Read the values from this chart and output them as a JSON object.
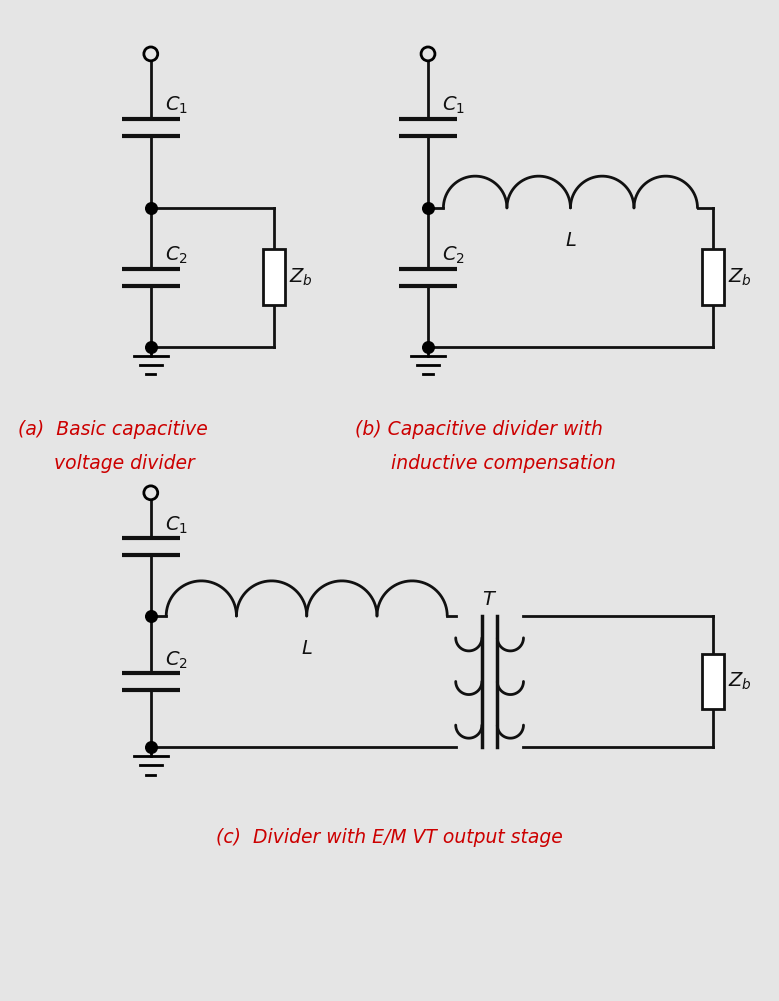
{
  "bg_color": "#e5e5e5",
  "lc": "#111111",
  "red": "#cc0000",
  "lw": 2.0,
  "figsize": [
    7.79,
    10.01
  ],
  "dpi": 100,
  "label_a_line1": "(a)  Basic capacitive",
  "label_a_line2": "      voltage divider",
  "label_b_line1": "(b) Capacitive divider with",
  "label_b_line2": "      inductive compensation",
  "label_c": "(c)  Divider with E/M VT output stage"
}
